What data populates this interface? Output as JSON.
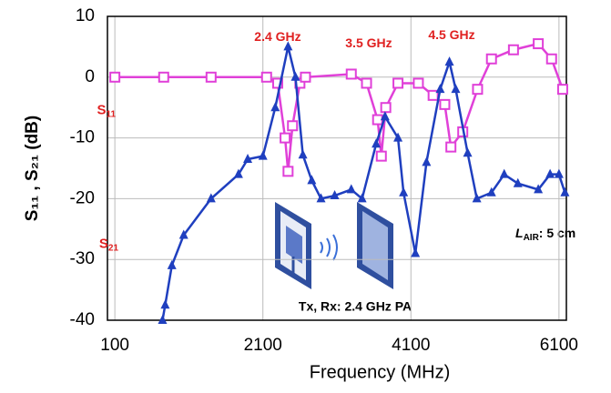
{
  "chart_data": {
    "type": "line",
    "x_label": "Frequency (MHz)",
    "y_label": "S₁₁ , S₂₁ (dB)",
    "xlim": [
      0,
      6200
    ],
    "xticks": [
      100,
      2100,
      4100,
      6100
    ],
    "ylim": [
      -40,
      10
    ],
    "yticks": [
      10,
      0,
      -10,
      -20,
      -30,
      -40
    ],
    "grid": true,
    "series": [
      {
        "color": "#e040d8",
        "marker": "square",
        "x": [
          100,
          760,
          1400,
          2150,
          2300,
          2400,
          2440,
          2500,
          2600,
          2675,
          3294,
          3500,
          3650,
          3700,
          3760,
          3925,
          4200,
          4400,
          4557,
          4640,
          4800,
          5000,
          5188,
          5485,
          5820,
          6000,
          6150
        ],
        "values": [
          0,
          0,
          0,
          0,
          -1,
          -10,
          -15.5,
          -8,
          -1,
          0,
          0.5,
          -1,
          -7,
          -13,
          -5,
          -1,
          -1,
          -3,
          -4.5,
          -11.5,
          -9,
          -2,
          3,
          4.5,
          5.5,
          3,
          -2
        ]
      },
      {
        "color": "#1f3fbf",
        "marker": "triangle",
        "x": [
          744,
          780,
          870,
          1030,
          1400,
          1770,
          1895,
          2100,
          2267,
          2440,
          2540,
          2640,
          2760,
          2885,
          3070,
          3294,
          3440,
          3630,
          3750,
          3925,
          4000,
          4160,
          4310,
          4495,
          4620,
          4705,
          4866,
          4990,
          5188,
          5360,
          5545,
          5820,
          5980,
          6100,
          6180
        ],
        "values": [
          -40,
          -37.5,
          -31,
          -26,
          -20,
          -16,
          -13.5,
          -13,
          -5,
          5,
          0,
          -12.8,
          -17,
          -20,
          -19.5,
          -18.5,
          -20,
          -11,
          -6.5,
          -10,
          -19,
          -29,
          -14,
          -2,
          2.5,
          -2,
          -12.5,
          -20,
          -19,
          -16,
          -17.5,
          -18.5,
          -16,
          -16,
          -19
        ]
      }
    ],
    "annotations": [
      {
        "text": "2.4 GHz",
        "x": 2300,
        "y": 6.5
      },
      {
        "text": "3.5 GHz",
        "x": 3530,
        "y": 5.5
      },
      {
        "text": "4.5 GHz",
        "x": 4650,
        "y": 6.8
      }
    ],
    "series_labels": [
      {
        "text": "S",
        "sub": "11",
        "x": 350,
        "y": -5.5
      },
      {
        "text": "S",
        "sub": "21",
        "x": 380,
        "y": -27.5
      }
    ],
    "notes": [
      {
        "text": "L",
        "sub": "AIR",
        "rest": ": 5 cm"
      },
      {
        "text": "Tx, Rx: 2.4 GHz PA"
      }
    ]
  }
}
